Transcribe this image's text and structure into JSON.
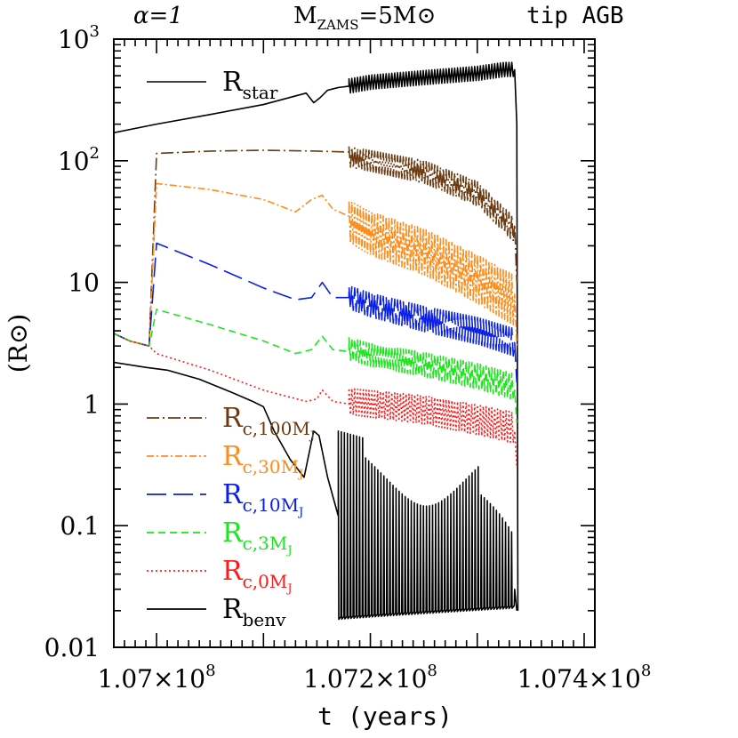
{
  "header": {
    "alpha": "α=1",
    "mass": "MZAMS=5M⊙",
    "mass_main": "M",
    "mass_sub": "ZAMS",
    "mass_rest": "=5M⊙",
    "phase": "tip AGB"
  },
  "chart_data": {
    "type": "line",
    "title": "",
    "xlabel": "t (years)",
    "ylabel": "(R⊙)",
    "ylabel_text": "(R⊙)",
    "xlim": [
      106960000,
      107410000
    ],
    "ylim": [
      0.01,
      1000
    ],
    "yscale": "log",
    "x_ticks": [
      {
        "value": 107000000,
        "label": "1.07×10",
        "exp": "8"
      },
      {
        "value": 107200000,
        "label": "1.072×10",
        "exp": "8"
      },
      {
        "value": 107400000,
        "label": "1.074×10",
        "exp": "8"
      }
    ],
    "y_ticks": [
      {
        "value": 1000,
        "label": "10",
        "exp": "3"
      },
      {
        "value": 100,
        "label": "10",
        "exp": "2"
      },
      {
        "value": 10,
        "label": "10",
        "exp": ""
      },
      {
        "value": 1,
        "label": "1",
        "exp": ""
      },
      {
        "value": 0.1,
        "label": "0.1",
        "exp": ""
      },
      {
        "value": 0.01,
        "label": "0.01",
        "exp": ""
      }
    ],
    "legend_top": {
      "placement": "top-left",
      "label_main": "R",
      "label_sub": "star",
      "color": "#000000"
    },
    "legend_bottom": {
      "placement": "bottom-left"
    },
    "series": [
      {
        "name": "Rstar",
        "label_main": "R",
        "label_sub": "star",
        "color": "#000000",
        "dash": "",
        "x": [
          106960000,
          107000000,
          107050000,
          107100000,
          107140000,
          107147000,
          107153000,
          107160000,
          107170000,
          107180000,
          107200000,
          107250000,
          107300000,
          107325000,
          107335000,
          107337000,
          107338000
        ],
        "y": [
          170,
          200,
          240,
          290,
          360,
          300,
          330,
          380,
          400,
          410,
          440,
          480,
          520,
          560,
          560,
          200,
          0.02
        ],
        "osc": {
          "start": 107180000,
          "end": 107335000,
          "count": 58,
          "low": 0.88,
          "high": 1.15,
          "grow": 0.0
        }
      },
      {
        "name": "Rc,100MJ",
        "label_main": "R",
        "label_sub": "c,100M",
        "label_sub2": "J",
        "color": "#6b3a10",
        "dash": "14,4,2,4",
        "x": [
          106960000,
          106975000,
          106993000,
          107000000,
          107050000,
          107100000,
          107150000,
          107180000,
          107200000,
          107250000,
          107300000,
          107335000,
          107337000
        ],
        "y": [
          3.8,
          3.3,
          3.0,
          115,
          120,
          122,
          120,
          118,
          110,
          90,
          60,
          30,
          10
        ],
        "osc": {
          "start": 107180000,
          "end": 107335000,
          "count": 58,
          "low": 0.75,
          "high": 1.1,
          "grow": 0.3
        }
      },
      {
        "name": "Rc,30MJ",
        "label_main": "R",
        "label_sub": "c,30M",
        "label_sub2": "J",
        "color": "#ff8c1a",
        "dash": "8,3,2,3",
        "x": [
          106960000,
          106975000,
          106993000,
          107000000,
          107050000,
          107100000,
          107130000,
          107145000,
          107155000,
          107165000,
          107180000,
          107200000,
          107250000,
          107300000,
          107335000,
          107337000
        ],
        "y": [
          3.8,
          3.3,
          3.0,
          65,
          58,
          48,
          38,
          48,
          52,
          40,
          35,
          28,
          20,
          12,
          8,
          3
        ],
        "osc": {
          "start": 107180000,
          "end": 107335000,
          "count": 58,
          "low": 0.6,
          "high": 1.35,
          "grow": 0.2
        }
      },
      {
        "name": "Rc,10MJ",
        "label_main": "R",
        "label_sub": "c,10M",
        "label_sub2": "J",
        "color": "#0a1fe6",
        "dash": "22,8",
        "x": [
          106960000,
          106975000,
          106993000,
          107000000,
          107050000,
          107100000,
          107130000,
          107145000,
          107155000,
          107165000,
          107180000,
          107200000,
          107250000,
          107300000,
          107335000,
          107337000
        ],
        "y": [
          3.8,
          3.3,
          3.0,
          21,
          14,
          9,
          7.2,
          7.5,
          10,
          7.5,
          7.5,
          6.5,
          5,
          4,
          3.2,
          1.5
        ],
        "osc": {
          "start": 107180000,
          "end": 107335000,
          "count": 58,
          "low": 0.8,
          "high": 1.25,
          "grow": 0.2
        }
      },
      {
        "name": "Rc,3MJ",
        "label_main": "R",
        "label_sub": "c,3M",
        "label_sub2": "J",
        "color": "#1be61b",
        "dash": "8,5",
        "x": [
          106960000,
          106975000,
          106993000,
          107000000,
          107050000,
          107100000,
          107130000,
          107145000,
          107155000,
          107165000,
          107180000,
          107200000,
          107250000,
          107300000,
          107335000,
          107337000
        ],
        "y": [
          3.8,
          3.3,
          3.0,
          6,
          4.5,
          3.3,
          2.6,
          2.8,
          3.6,
          2.8,
          2.7,
          2.4,
          2.0,
          1.6,
          1.3,
          0.7
        ],
        "osc": {
          "start": 107180000,
          "end": 107335000,
          "count": 58,
          "low": 0.85,
          "high": 1.3,
          "grow": 0.2
        }
      },
      {
        "name": "Rc,0MJ",
        "label_main": "R",
        "label_sub": "c,0M",
        "label_sub2": "J",
        "color": "#ff1a1a",
        "dash": "2,3",
        "x": [
          106960000,
          106975000,
          106993000,
          107000000,
          107050000,
          107100000,
          107140000,
          107150000,
          107155000,
          107165000,
          107180000,
          107200000,
          107250000,
          107300000,
          107335000,
          107337000
        ],
        "y": [
          3.8,
          3.3,
          3.0,
          2.6,
          1.9,
          1.3,
          1.05,
          1.1,
          1.3,
          1.05,
          1.0,
          0.95,
          0.85,
          0.7,
          0.6,
          0.3
        ],
        "osc": {
          "start": 107180000,
          "end": 107335000,
          "count": 58,
          "low": 0.82,
          "high": 1.35,
          "grow": 0.2
        }
      },
      {
        "name": "Rbenv",
        "label_main": "R",
        "label_sub": "benv",
        "color": "#000000",
        "dash": "",
        "x": [
          106960000,
          106990000,
          107010000,
          107040000,
          107070000,
          107090000,
          107100000,
          107110000,
          107125000,
          107138000,
          107147000,
          107152000,
          107160000,
          107170000,
          107180000,
          107220000,
          107270000,
          107310000,
          107335000,
          107337000
        ],
        "y": [
          2.2,
          2.0,
          1.9,
          1.6,
          1.25,
          1.05,
          0.95,
          0.6,
          0.35,
          0.25,
          0.6,
          0.55,
          0.25,
          0.12,
          0.08,
          0.03,
          0.03,
          0.04,
          0.03,
          0.02
        ],
        "osc": {
          "start": 107170000,
          "end": 107335000,
          "count": 58,
          "mode": "benv"
        }
      }
    ]
  }
}
